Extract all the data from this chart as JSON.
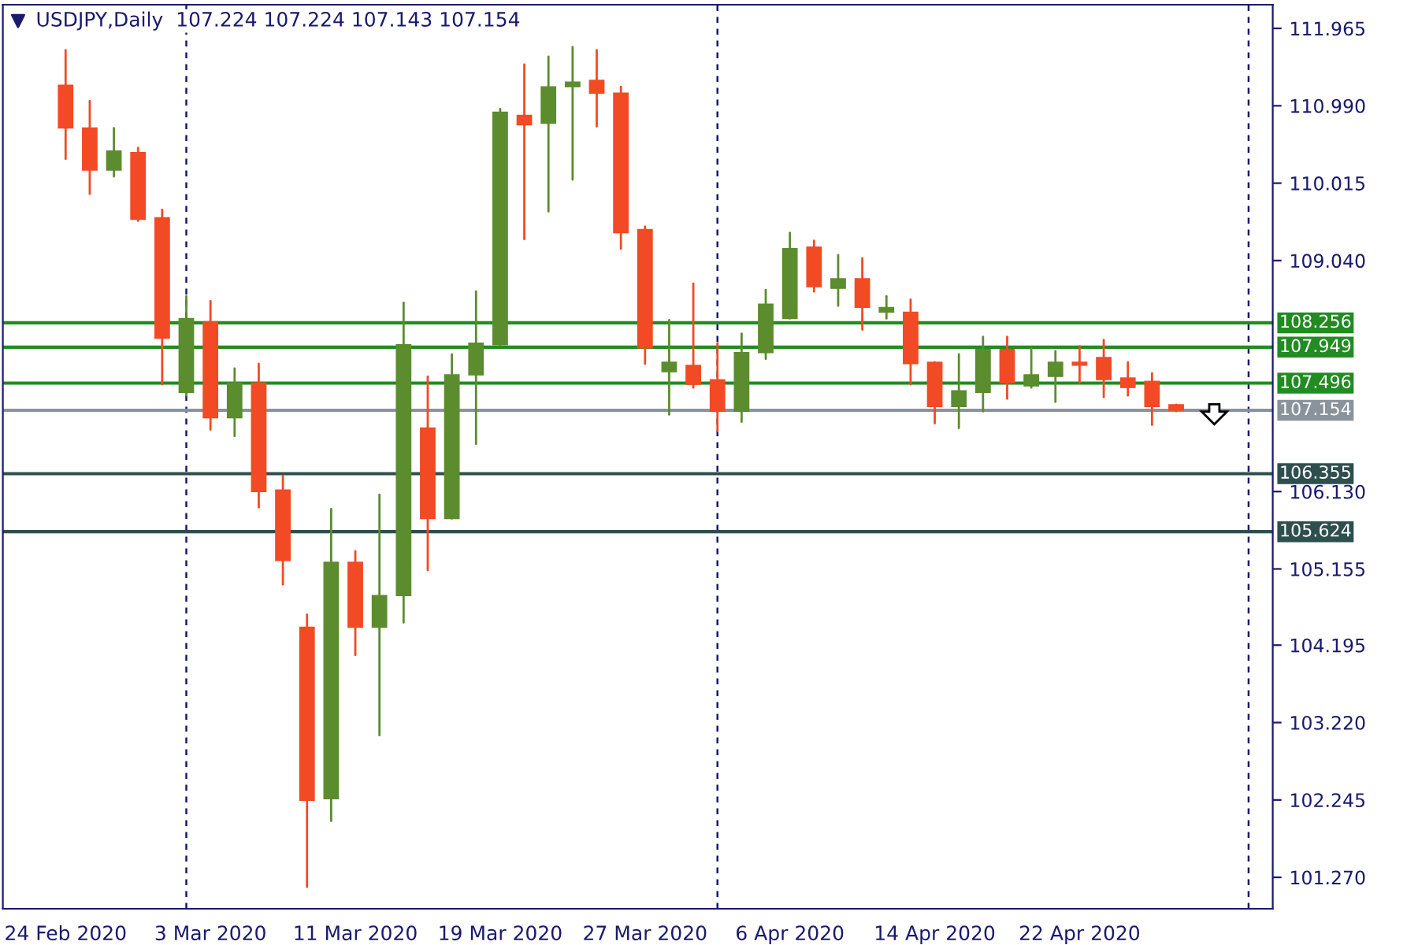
{
  "chart_data": {
    "type": "candlestick",
    "title": "USDJPY,Daily  107.224 107.224 107.143 107.154",
    "categories": [
      "24 Feb 2020",
      null,
      null,
      null,
      null,
      null,
      "3 Mar 2020",
      null,
      null,
      null,
      null,
      null,
      "11 Mar 2020",
      null,
      null,
      null,
      null,
      null,
      "19 Mar 2020",
      null,
      null,
      null,
      null,
      null,
      "27 Mar 2020",
      null,
      null,
      null,
      null,
      null,
      "6 Apr 2020",
      null,
      null,
      null,
      null,
      null,
      "14 Apr 2020",
      null,
      null,
      null,
      null,
      null,
      "22 Apr 2020",
      null,
      null,
      null,
      null,
      null,
      null,
      null,
      null
    ],
    "ohlc": [
      [
        111.25,
        111.69,
        110.32,
        110.71
      ],
      [
        110.71,
        111.05,
        109.88,
        110.18
      ],
      [
        110.18,
        110.71,
        110.1,
        110.42
      ],
      [
        110.4,
        110.46,
        109.54,
        109.56
      ],
      [
        109.58,
        109.68,
        107.48,
        108.06
      ],
      [
        107.38,
        108.59,
        107.34,
        108.31
      ],
      [
        108.27,
        108.53,
        106.91,
        107.06
      ],
      [
        107.06,
        107.68,
        106.83,
        107.5
      ],
      [
        107.5,
        107.74,
        105.93,
        106.13
      ],
      [
        106.15,
        106.33,
        104.96,
        105.26
      ],
      [
        104.42,
        104.58,
        101.15,
        102.24
      ],
      [
        102.26,
        105.91,
        101.98,
        105.24
      ],
      [
        105.24,
        105.38,
        104.07,
        104.42
      ],
      [
        104.42,
        106.09,
        103.06,
        104.82
      ],
      [
        104.82,
        108.51,
        104.48,
        107.98
      ],
      [
        106.93,
        107.58,
        105.14,
        105.79
      ],
      [
        105.79,
        107.86,
        105.79,
        107.6
      ],
      [
        107.6,
        108.65,
        106.73,
        108.0
      ],
      [
        107.98,
        110.95,
        107.98,
        110.91
      ],
      [
        110.87,
        111.51,
        109.31,
        110.75
      ],
      [
        110.77,
        111.61,
        109.66,
        111.23
      ],
      [
        111.23,
        111.73,
        110.06,
        111.29
      ],
      [
        111.31,
        111.69,
        110.73,
        111.15
      ],
      [
        111.15,
        111.23,
        109.19,
        109.39
      ],
      [
        109.43,
        109.47,
        107.74,
        107.94
      ],
      [
        107.64,
        108.29,
        107.1,
        107.76
      ],
      [
        107.72,
        108.75,
        107.44,
        107.48
      ],
      [
        107.54,
        108.0,
        106.89,
        107.14
      ],
      [
        107.14,
        108.12,
        107.01,
        107.88
      ],
      [
        107.88,
        108.67,
        107.8,
        108.49
      ],
      [
        108.31,
        109.39,
        108.31,
        109.19
      ],
      [
        109.21,
        109.29,
        108.65,
        108.71
      ],
      [
        108.69,
        109.11,
        108.47,
        108.81
      ],
      [
        108.81,
        109.07,
        108.17,
        108.45
      ],
      [
        108.39,
        108.59,
        108.31,
        108.45
      ],
      [
        108.39,
        108.55,
        107.48,
        107.74
      ],
      [
        107.76,
        107.76,
        106.99,
        107.2
      ],
      [
        107.2,
        107.86,
        106.93,
        107.4
      ],
      [
        107.38,
        108.08,
        107.14,
        107.92
      ],
      [
        107.92,
        108.08,
        107.3,
        107.5
      ],
      [
        107.46,
        107.94,
        107.44,
        107.6
      ],
      [
        107.58,
        107.9,
        107.26,
        107.76
      ],
      [
        107.76,
        107.96,
        107.5,
        107.72
      ],
      [
        107.82,
        108.04,
        107.32,
        107.54
      ],
      [
        107.56,
        107.76,
        107.34,
        107.44
      ],
      [
        107.52,
        107.62,
        106.97,
        107.2
      ],
      [
        107.224,
        107.224,
        107.143,
        107.154
      ],
      null,
      null,
      null,
      null
    ],
    "colors": [
      "#f24a24",
      "#f24a24",
      "#5b8c2e",
      "#f24a24",
      "#f24a24",
      "#5b8c2e",
      "#f24a24",
      "#5b8c2e",
      "#f24a24",
      "#f24a24",
      "#f24a24",
      "#5b8c2e",
      "#f24a24",
      "#5b8c2e",
      "#5b8c2e",
      "#f24a24",
      "#5b8c2e",
      "#5b8c2e",
      "#5b8c2e",
      "#f24a24",
      "#5b8c2e",
      "#5b8c2e",
      "#f24a24",
      "#f24a24",
      "#f24a24",
      "#5b8c2e",
      "#f24a24",
      "#f24a24",
      "#5b8c2e",
      "#5b8c2e",
      "#5b8c2e",
      "#f24a24",
      "#5b8c2e",
      "#f24a24",
      "#5b8c2e",
      "#f24a24",
      "#f24a24",
      "#5b8c2e",
      "#5b8c2e",
      "#f24a24",
      "#5b8c2e",
      "#5b8c2e",
      "#f24a24",
      "#f24a24",
      "#f24a24",
      "#f24a24",
      "#f24a24",
      null,
      null,
      null,
      null
    ],
    "ylim": [
      100.874,
      112.263
    ],
    "yticks": [
      111.965,
      {
        "value": 110.99,
        "label": "110.990"
      },
      110.015,
      {
        "value": 109.04,
        "label": "109.040"
      },
      {
        "value": 106.13,
        "label": "106.130"
      },
      105.155,
      104.195,
      {
        "value": 103.22,
        "label": "103.220"
      },
      102.245,
      {
        "value": 101.27,
        "label": "101.270"
      }
    ],
    "ref_lines": [
      {
        "axis": "y",
        "value": 108.256,
        "label": "108.256",
        "color": "#228b22",
        "line_style": "solid"
      },
      {
        "axis": "y",
        "value": 107.949,
        "label": "107.949",
        "color": "#228b22",
        "line_style": "solid"
      },
      {
        "axis": "y",
        "value": 107.496,
        "label": "107.496",
        "color": "#228b22",
        "line_style": "solid"
      },
      {
        "axis": "y",
        "value": 107.154,
        "label": "107.154",
        "color": "#8a939b",
        "line_style": "solid"
      },
      {
        "axis": "y",
        "value": 106.355,
        "label": "106.355",
        "color": "#2f4f4f",
        "line_style": "solid"
      },
      {
        "axis": "y",
        "value": 105.624,
        "label": "105.624",
        "color": "#2f4f4f",
        "line_style": "solid"
      }
    ],
    "grid": "x"
  }
}
